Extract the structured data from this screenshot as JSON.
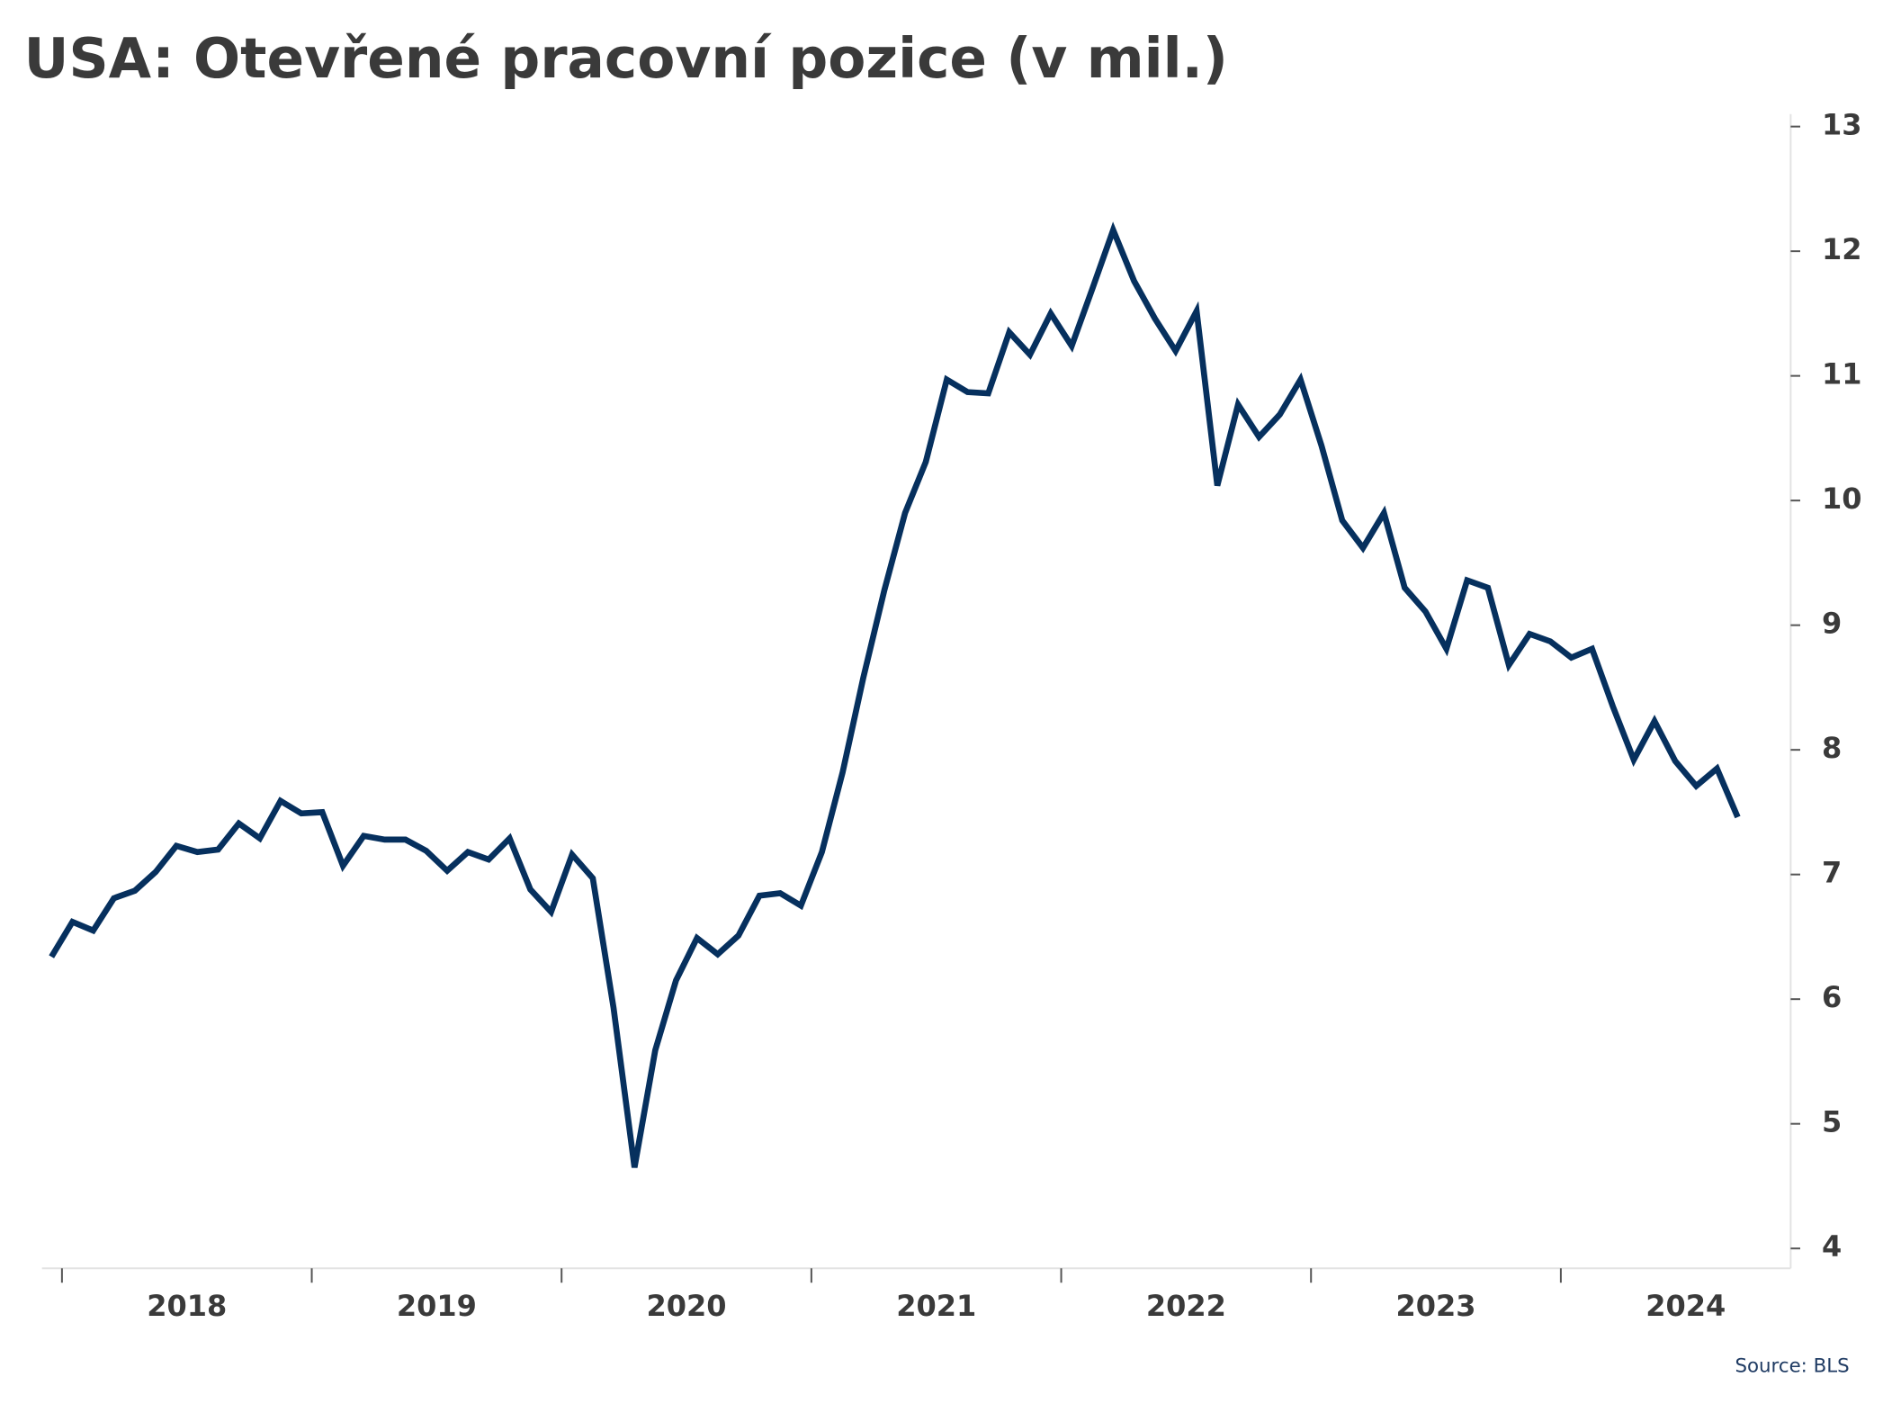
{
  "chart_data": {
    "type": "line",
    "title": "USA: Otevřené pracovní pozice (v mil.)",
    "source": "Source: BLS",
    "x": [
      2017.958,
      2018.042,
      2018.125,
      2018.208,
      2018.292,
      2018.375,
      2018.458,
      2018.542,
      2018.625,
      2018.708,
      2018.792,
      2018.875,
      2018.958,
      2019.042,
      2019.125,
      2019.208,
      2019.292,
      2019.375,
      2019.458,
      2019.542,
      2019.625,
      2019.708,
      2019.792,
      2019.875,
      2019.958,
      2020.042,
      2020.125,
      2020.208,
      2020.292,
      2020.375,
      2020.458,
      2020.542,
      2020.625,
      2020.708,
      2020.792,
      2020.875,
      2020.958,
      2021.042,
      2021.125,
      2021.208,
      2021.292,
      2021.375,
      2021.458,
      2021.542,
      2021.625,
      2021.708,
      2021.792,
      2021.875,
      2021.958,
      2022.042,
      2022.125,
      2022.208,
      2022.292,
      2022.375,
      2022.458,
      2022.542,
      2022.625,
      2022.708,
      2022.792,
      2022.875,
      2022.958,
      2023.042,
      2023.125,
      2023.208,
      2023.292,
      2023.375,
      2023.458,
      2023.542,
      2023.625,
      2023.708,
      2023.792,
      2023.875,
      2023.958,
      2024.042,
      2024.125,
      2024.208,
      2024.292,
      2024.375,
      2024.458,
      2024.542,
      2024.625,
      2024.708
    ],
    "series": [
      {
        "name": "Otevřené pracovní pozice",
        "color": "#06305e",
        "values": [
          6.34,
          6.62,
          6.55,
          6.81,
          6.87,
          7.02,
          7.23,
          7.18,
          7.2,
          7.41,
          7.29,
          7.59,
          7.49,
          7.5,
          7.07,
          7.31,
          7.28,
          7.28,
          7.19,
          7.03,
          7.18,
          7.12,
          7.29,
          6.88,
          6.7,
          7.16,
          6.97,
          5.93,
          4.65,
          5.59,
          6.15,
          6.49,
          6.36,
          6.51,
          6.83,
          6.85,
          6.75,
          7.18,
          7.82,
          8.58,
          9.28,
          9.9,
          10.31,
          10.97,
          10.87,
          10.86,
          11.35,
          11.17,
          11.5,
          11.24,
          11.7,
          12.17,
          11.76,
          11.46,
          11.2,
          11.52,
          10.12,
          10.77,
          10.51,
          10.69,
          10.97,
          10.44,
          9.84,
          9.62,
          9.9,
          9.3,
          9.11,
          8.81,
          9.36,
          9.3,
          8.68,
          8.93,
          8.87,
          8.74,
          8.81,
          8.35,
          7.92,
          8.23,
          7.91,
          7.71,
          7.85,
          7.46
        ]
      }
    ],
    "xlim": [
      2017.92,
      2024.92
    ],
    "xticks": [
      2018,
      2019,
      2020,
      2021,
      2022,
      2023,
      2024
    ],
    "ylim": [
      3.86,
      13.1
    ],
    "yticks": [
      4,
      5,
      6,
      7,
      8,
      9,
      10,
      11,
      12,
      13
    ],
    "y_axis_side": "right"
  }
}
